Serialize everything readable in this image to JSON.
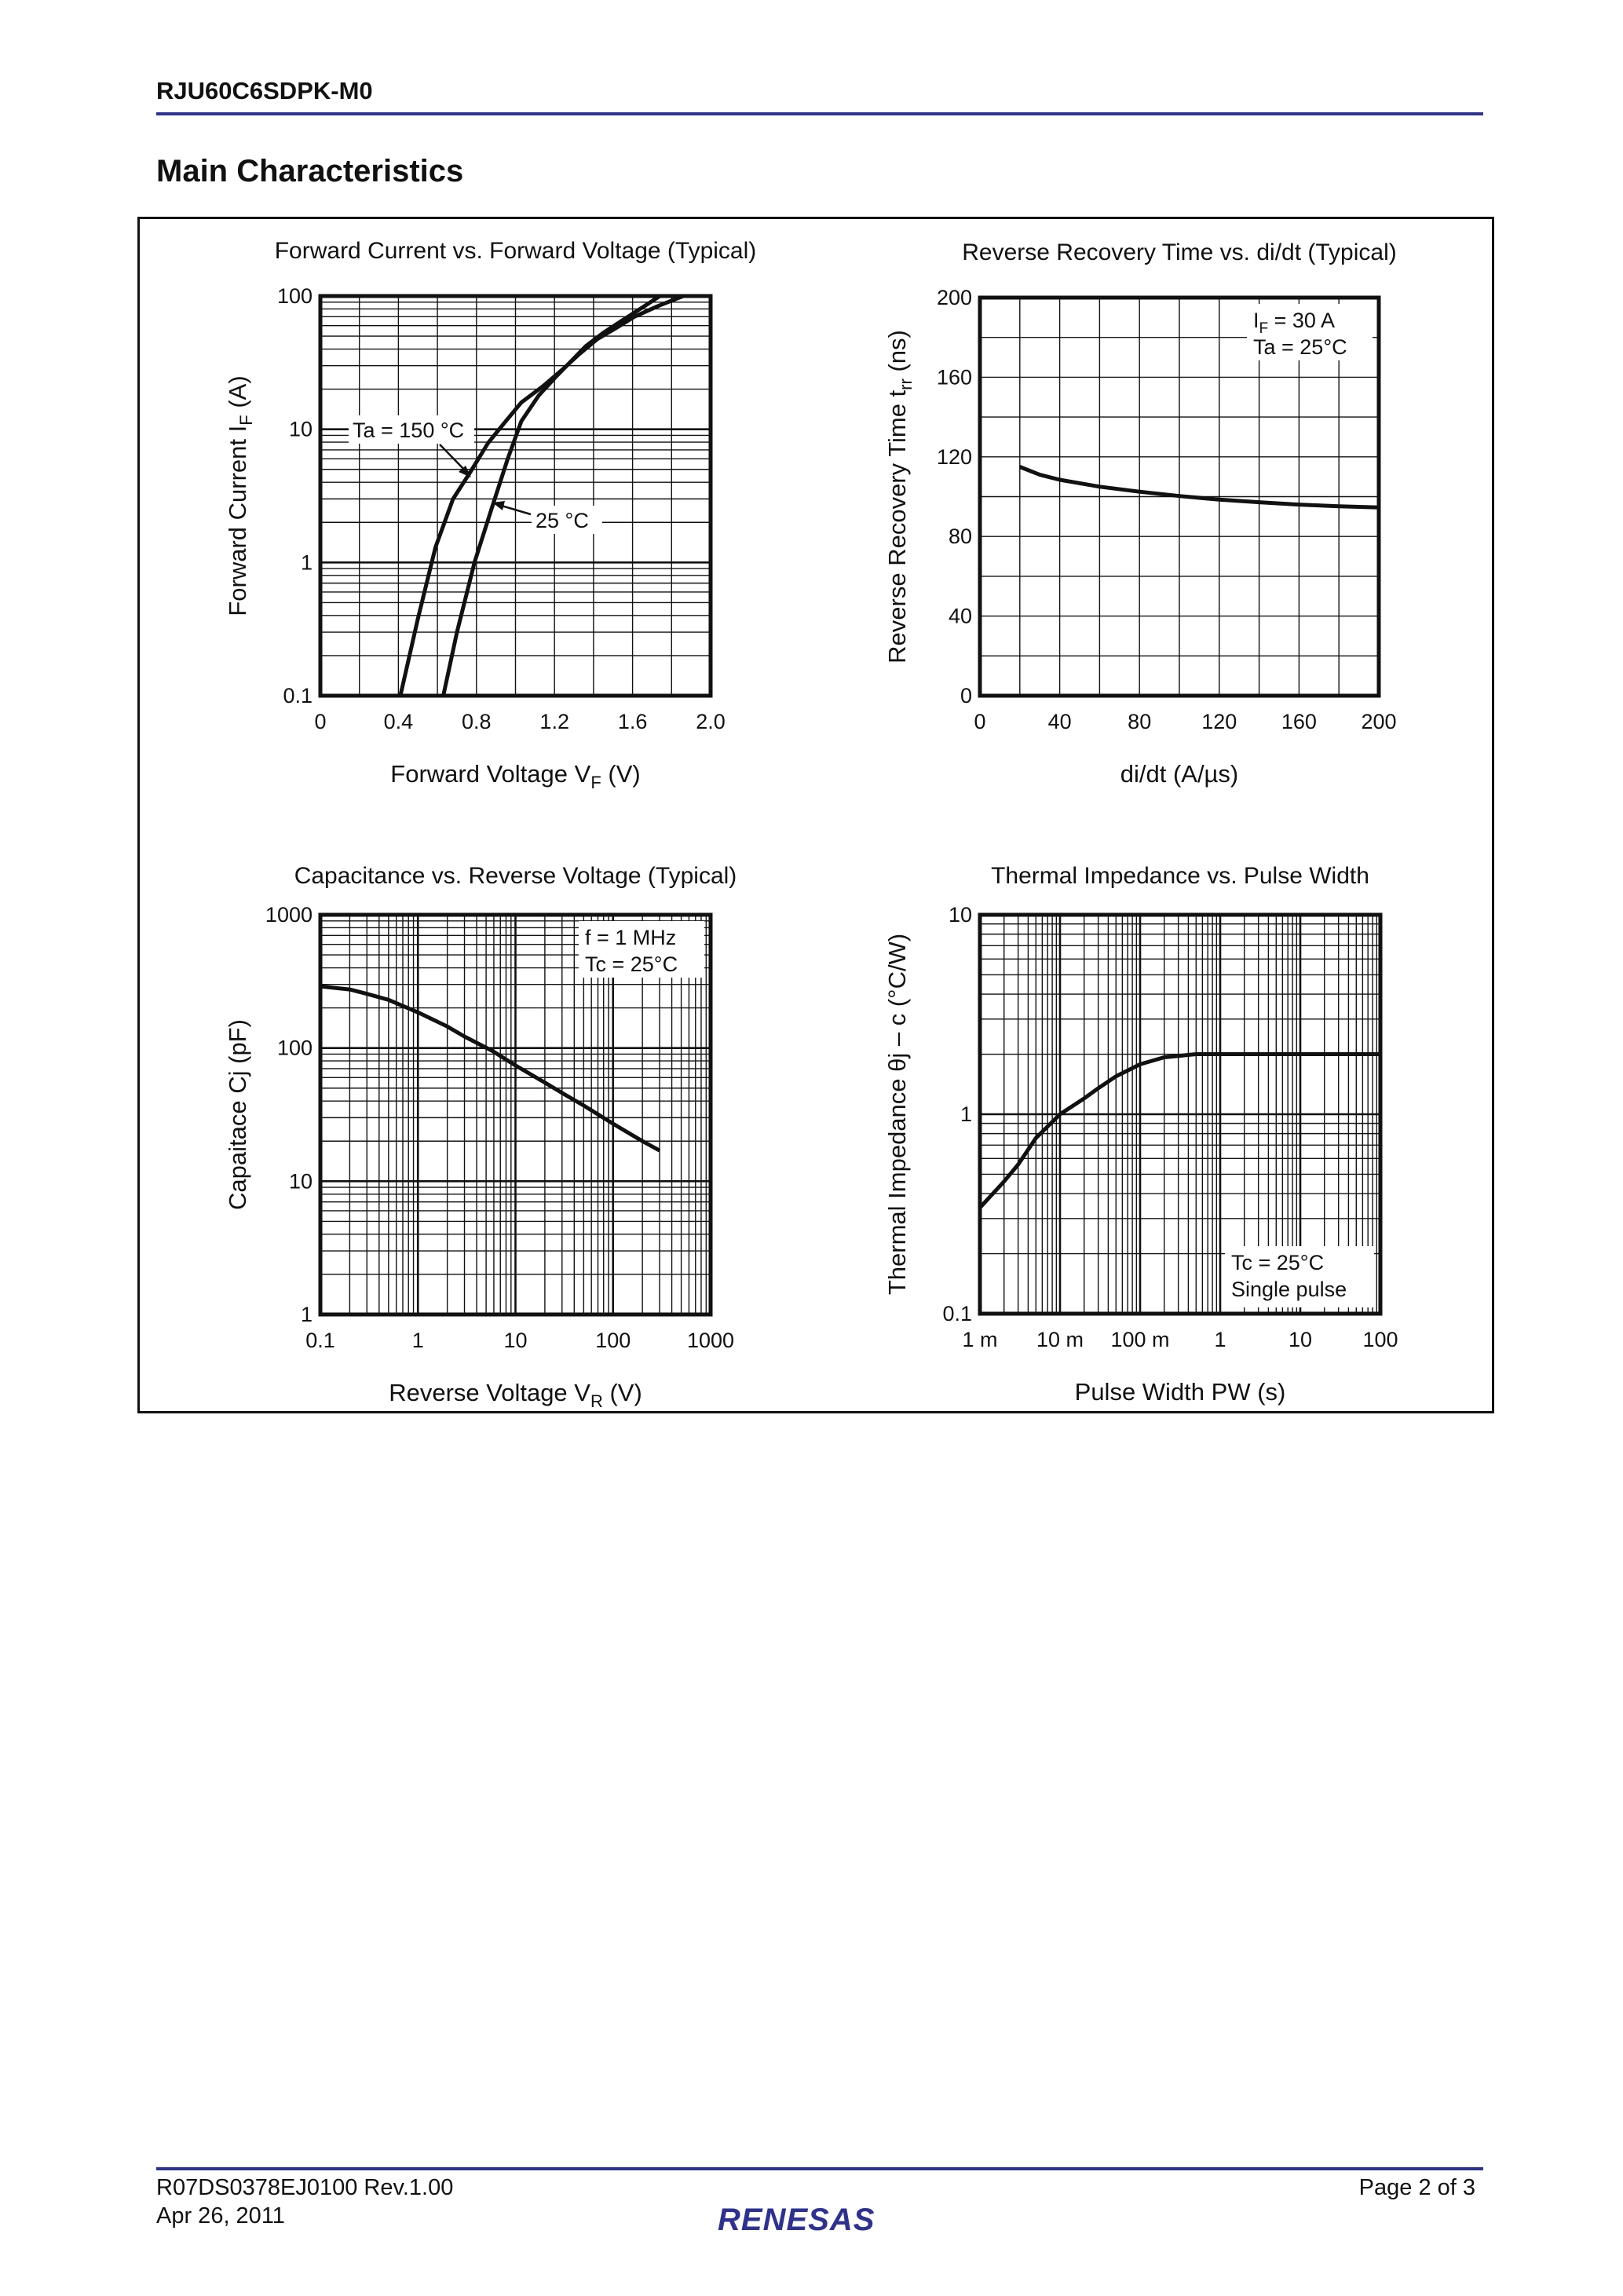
{
  "header": {
    "doc_title": "RJU60C6SDPK-M0",
    "section_title": "Main Characteristics",
    "rule_color": "#2e3192"
  },
  "footer": {
    "doc_number": "R07DS0378EJ0100  Rev.1.00",
    "date": "Apr 26, 2011",
    "page": "Page 2 of 3",
    "logo_text": "RENESAS",
    "logo_color": "#2e3192"
  },
  "chart_data": [
    {
      "type": "line",
      "title": "Forward Current vs. Forward Voltage (Typical)",
      "xlabel": {
        "text": "Forward Voltage   V",
        "sub": "F",
        "unit": "  (V)"
      },
      "ylabel": {
        "text": "Forward Current   I",
        "sub": "F",
        "unit": "  (A)"
      },
      "xscale": "linear",
      "yscale": "log",
      "xlim": [
        0,
        2.0
      ],
      "ylim": [
        0.1,
        100
      ],
      "xticks": [
        0,
        0.4,
        0.8,
        1.2,
        1.6,
        2.0
      ],
      "xtick_labels": [
        "0",
        "0.4",
        "0.8",
        "1.2",
        "1.6",
        "2.0"
      ],
      "yticks": [
        0.1,
        1,
        10,
        100
      ],
      "ytick_labels": [
        "0.1",
        "1",
        "10",
        "100"
      ],
      "x_grid_step": 0.2,
      "grid": true,
      "series": [
        {
          "name": "Ta = 150 °C",
          "x": [
            0.41,
            0.5,
            0.59,
            0.68,
            0.77,
            0.86,
            0.95,
            1.03,
            1.14,
            1.24,
            1.33,
            1.42,
            1.52,
            1.61,
            1.73,
            1.86
          ],
          "y": [
            0.1,
            0.38,
            1.3,
            3.0,
            4.8,
            7.9,
            11.5,
            15.9,
            21,
            28,
            37,
            47.6,
            58,
            70,
            84,
            100
          ]
        },
        {
          "name": "25 °C",
          "x": [
            0.63,
            0.7,
            0.79,
            0.88,
            0.96,
            1.03,
            1.12,
            1.21,
            1.29,
            1.36,
            1.45,
            1.55,
            1.65,
            1.74
          ],
          "y": [
            0.1,
            0.3,
            1.0,
            2.6,
            6.0,
            11.5,
            18,
            25,
            33,
            42,
            53,
            66,
            82,
            100
          ]
        }
      ],
      "annotations": [
        {
          "text": "Ta = 150 °C"
        },
        {
          "text": "25 °C"
        }
      ]
    },
    {
      "type": "line",
      "title": "Reverse Recovery Time vs. di/dt (Typical)",
      "xlabel": {
        "text": "di/dt   (A/µs)",
        "sub": "",
        "unit": ""
      },
      "ylabel": {
        "text": "Reverse Recovery Time  t",
        "sub": "rr",
        "unit": "  (ns)"
      },
      "xscale": "linear",
      "yscale": "linear",
      "xlim": [
        0,
        200
      ],
      "ylim": [
        0,
        200
      ],
      "xticks": [
        0,
        40,
        80,
        120,
        160,
        200
      ],
      "xtick_labels": [
        "0",
        "40",
        "80",
        "120",
        "160",
        "200"
      ],
      "yticks": [
        0,
        40,
        80,
        120,
        160,
        200
      ],
      "ytick_labels": [
        "0",
        "40",
        "80",
        "120",
        "160",
        "200"
      ],
      "x_grid_step": 20,
      "y_grid_step": 20,
      "grid": true,
      "series": [
        {
          "x": [
            20,
            30,
            40,
            60,
            80,
            100,
            120,
            140,
            160,
            180,
            200
          ],
          "y": [
            115,
            111,
            108.5,
            105,
            102.5,
            100.3,
            98.5,
            97.2,
            96,
            95.2,
            94.6
          ]
        }
      ],
      "legend_lines": [
        {
          "text": "I",
          "sub": "F",
          "rest": " = 30 A"
        },
        {
          "text": "Ta = 25°C",
          "sub": "",
          "rest": ""
        }
      ],
      "legend_placement": "top-right"
    },
    {
      "type": "line",
      "title": "Capacitance vs. Reverse Voltage (Typical)",
      "xlabel": {
        "text": "Reverse Voltage   V",
        "sub": "R",
        "unit": "  (V)"
      },
      "ylabel": {
        "text": "Capaitace   Cj  (pF)",
        "sub": "",
        "unit": ""
      },
      "xscale": "log",
      "yscale": "log",
      "xlim": [
        0.1,
        1000
      ],
      "ylim": [
        1,
        1000
      ],
      "xticks": [
        0.1,
        1,
        10,
        100,
        1000
      ],
      "xtick_labels": [
        "0.1",
        "1",
        "10",
        "100",
        "1000"
      ],
      "yticks": [
        1,
        10,
        100,
        1000
      ],
      "ytick_labels": [
        "1",
        "10",
        "100",
        "1000"
      ],
      "grid": true,
      "series": [
        {
          "x": [
            0.1,
            0.2,
            0.3,
            0.5,
            1,
            2,
            3,
            5.8,
            10,
            20,
            30,
            50,
            100,
            200,
            300
          ],
          "y": [
            290,
            275,
            255,
            230,
            185,
            145,
            122,
            95,
            74,
            55,
            46,
            37,
            27,
            20,
            17
          ]
        }
      ],
      "legend_lines": [
        {
          "text": "f = 1 MHz",
          "sub": "",
          "rest": ""
        },
        {
          "text": "Tc = 25°C",
          "sub": "",
          "rest": ""
        }
      ],
      "legend_placement": "top-right"
    },
    {
      "type": "line",
      "title": "Thermal Impedance vs. Pulse Width",
      "xlabel": {
        "text": "Pulse Width   PW  (s)",
        "sub": "",
        "unit": ""
      },
      "ylabel": {
        "text": "Thermal Impedance   θj – c  (°C/W)",
        "sub": "",
        "unit": ""
      },
      "xscale": "log",
      "yscale": "log",
      "xlim": [
        0.001,
        100
      ],
      "ylim": [
        0.1,
        10
      ],
      "xticks": [
        0.001,
        0.01,
        0.1,
        1,
        10,
        100
      ],
      "xtick_labels": [
        "1 m",
        "10 m",
        "100 m",
        "1",
        "10",
        "100"
      ],
      "yticks": [
        0.1,
        1,
        10
      ],
      "ytick_labels": [
        "0.1",
        "1",
        "10"
      ],
      "grid": true,
      "series": [
        {
          "x": [
            0.001,
            0.002,
            0.003,
            0.005,
            0.01,
            0.02,
            0.03,
            0.05,
            0.1,
            0.2,
            0.5,
            1,
            10,
            100
          ],
          "y": [
            0.34,
            0.46,
            0.56,
            0.76,
            1.0,
            1.2,
            1.35,
            1.55,
            1.78,
            1.93,
            2.0,
            2.0,
            2.0,
            2.0
          ]
        }
      ],
      "legend_lines": [
        {
          "text": "Tc = 25°C",
          "sub": "",
          "rest": ""
        },
        {
          "text": "Single pulse",
          "sub": "",
          "rest": ""
        }
      ],
      "legend_placement": "bottom-right"
    }
  ]
}
